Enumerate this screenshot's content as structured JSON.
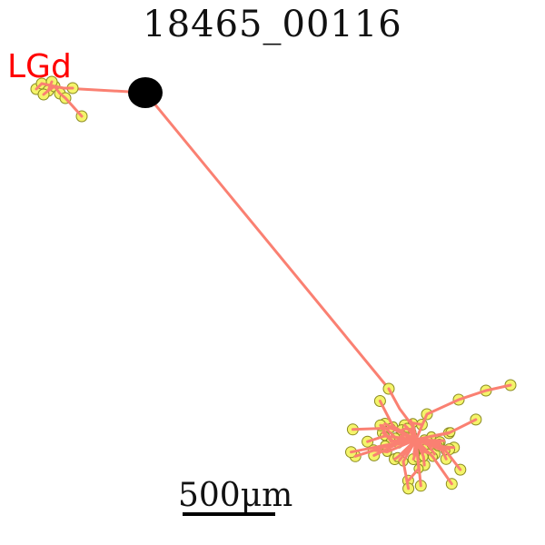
{
  "title": "18465_00116",
  "region_label": "LGd",
  "scale_bar": {
    "label": "500μm"
  },
  "colors": {
    "neurite": "#fa8072",
    "node_fill": "#f4f46a",
    "node_edge": "#8a8a20",
    "soma": "#000000",
    "region_label": "#ff0000"
  }
}
